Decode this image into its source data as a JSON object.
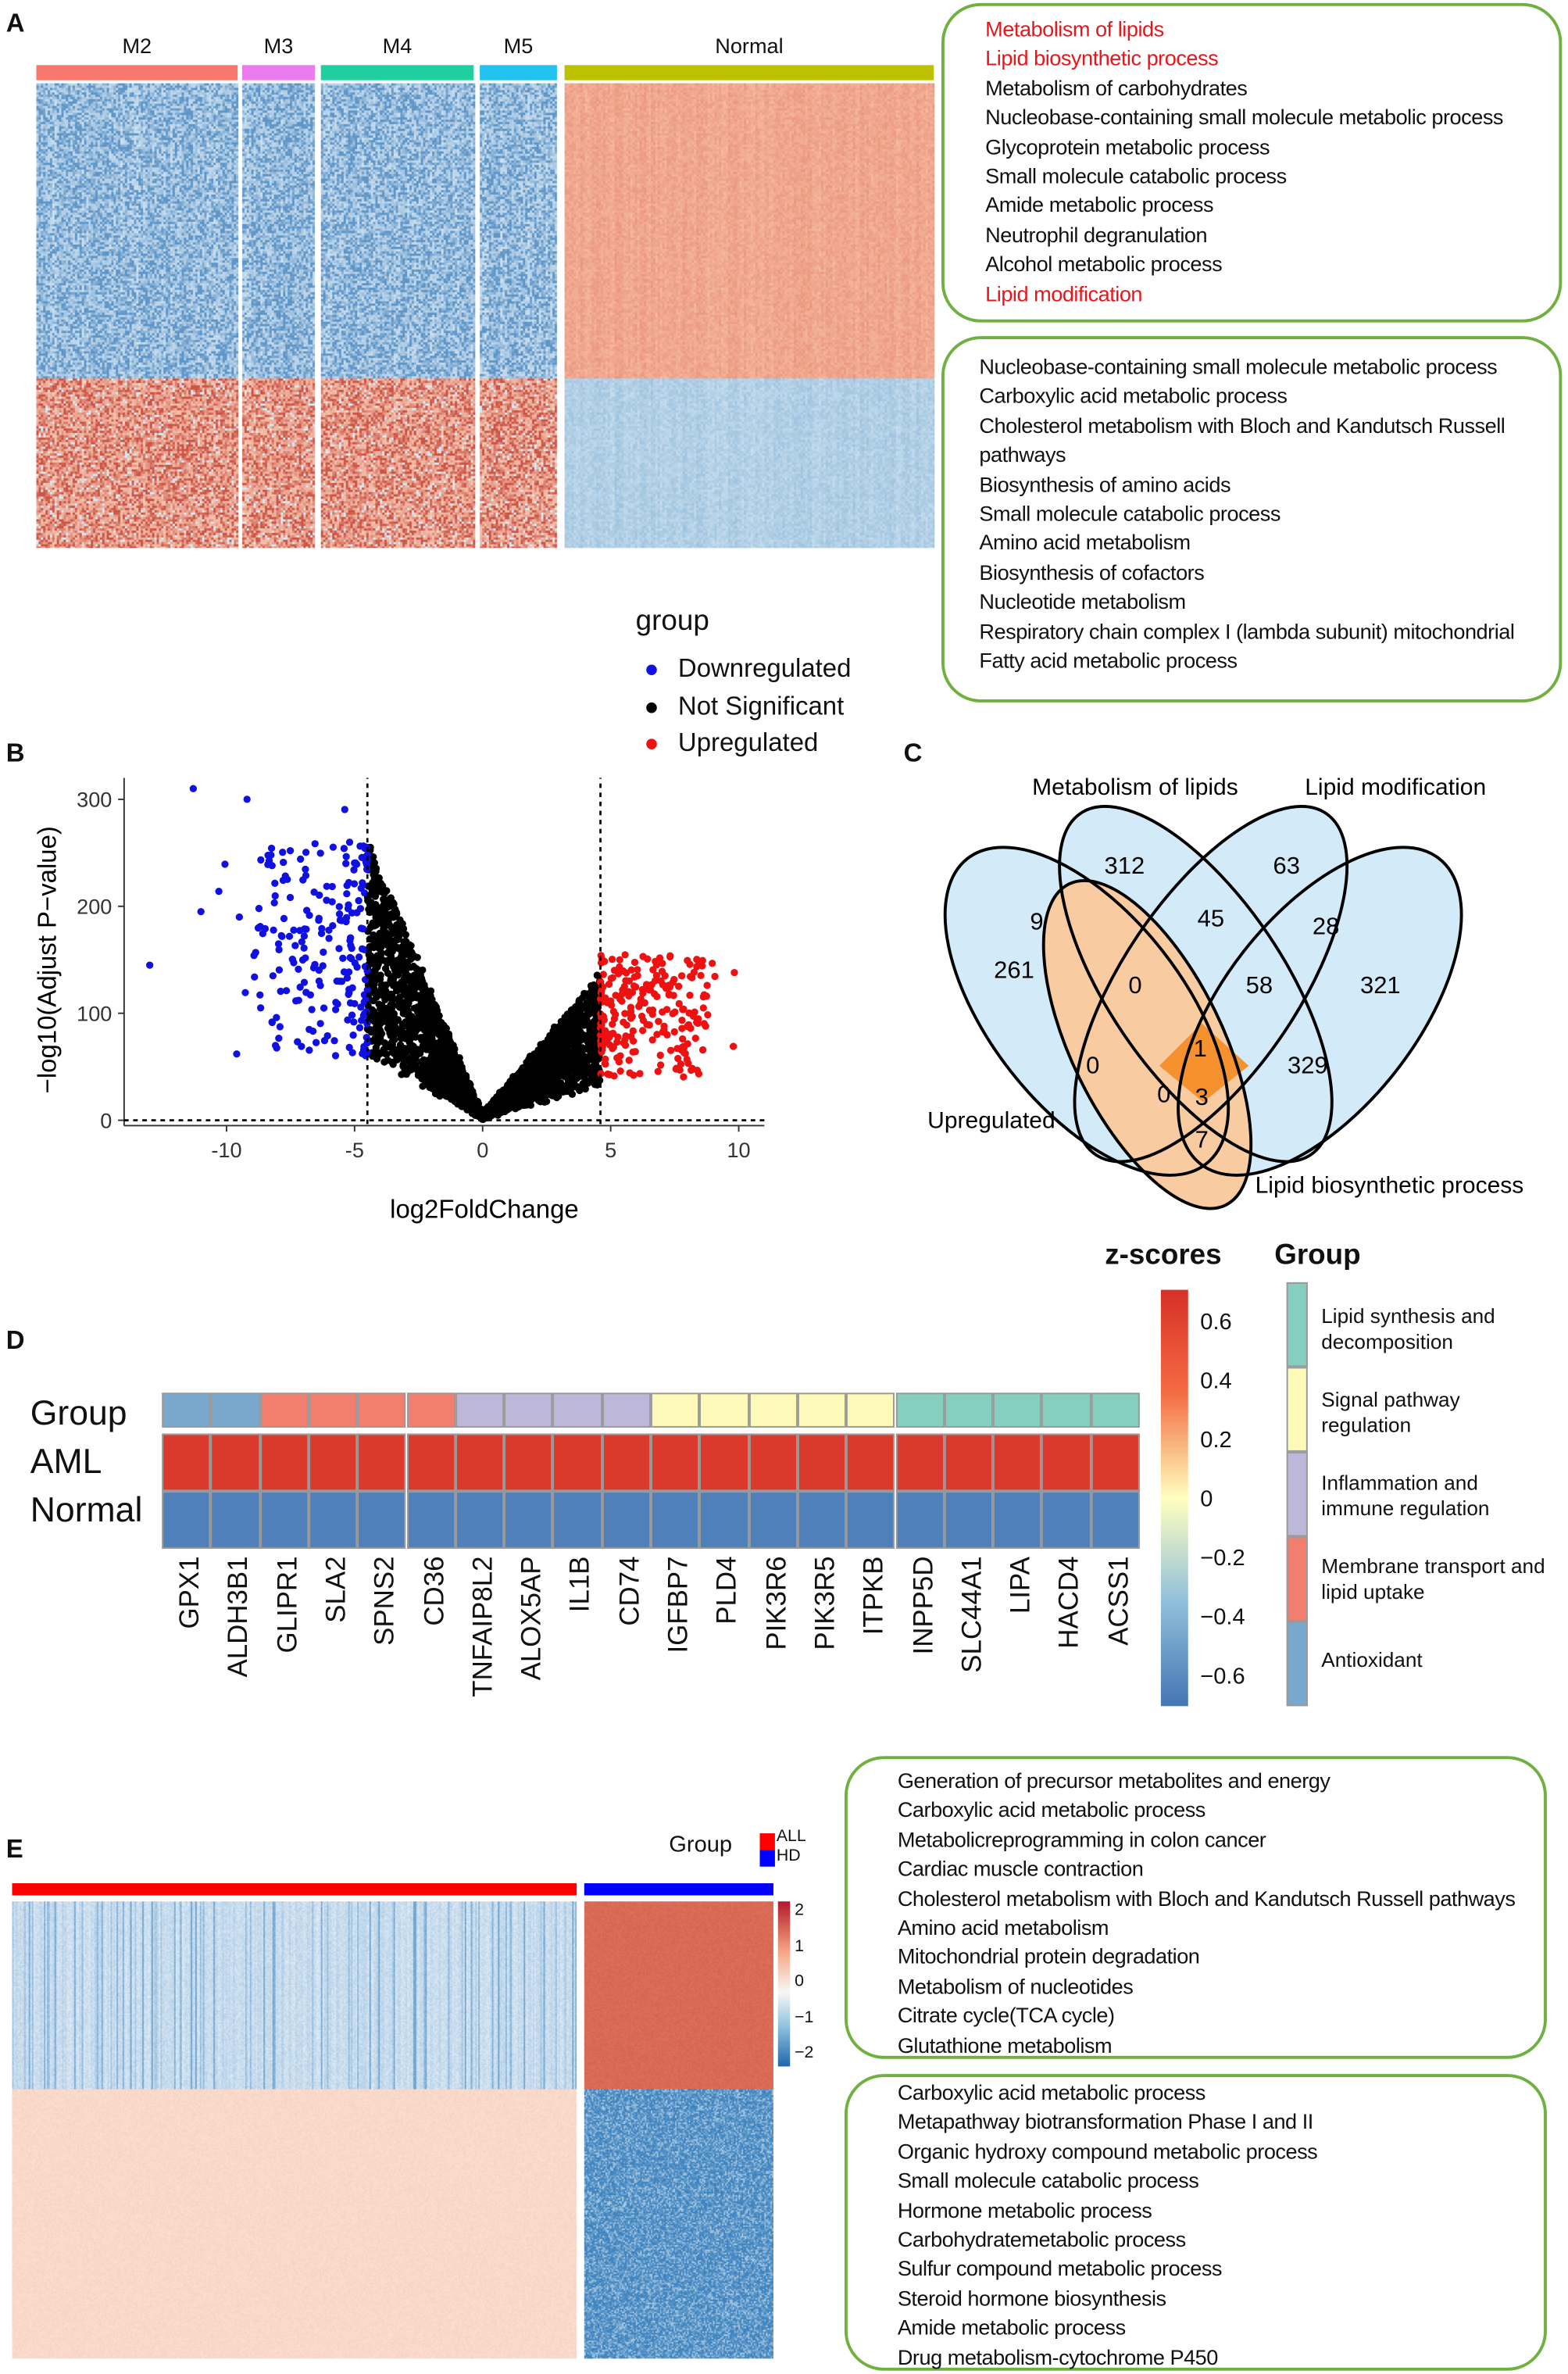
{
  "panel_labels": {
    "a": "A",
    "b": "B",
    "c": "C",
    "d": "D",
    "e": "E"
  },
  "heatmap_a": {
    "groups": [
      {
        "name": "M2",
        "color": "#f8776d"
      },
      {
        "name": "M3",
        "color": "#ea7cf0"
      },
      {
        "name": "M4",
        "color": "#1fcf9f"
      },
      {
        "name": "M5",
        "color": "#22c3ef"
      },
      {
        "name": "Normal",
        "color": "#bcc200"
      }
    ]
  },
  "go_box_a_top": [
    {
      "text": "Metabolism of lipids",
      "highlight": true
    },
    {
      "text": "Lipid biosynthetic process",
      "highlight": true
    },
    {
      "text": "Metabolism of carbohydrates",
      "highlight": false
    },
    {
      "text": "Nucleobase-containing small molecule metabolic process",
      "highlight": false
    },
    {
      "text": "Glycoprotein metabolic process",
      "highlight": false
    },
    {
      "text": "Small molecule catabolic process",
      "highlight": false
    },
    {
      "text": "Amide metabolic process",
      "highlight": false
    },
    {
      "text": "Neutrophil degranulation",
      "highlight": false
    },
    {
      "text": "Alcohol metabolic process",
      "highlight": false
    },
    {
      "text": "Lipid modification",
      "highlight": true
    }
  ],
  "go_box_a_bottom": [
    {
      "text": "Nucleobase-containing small molecule metabolic process"
    },
    {
      "text": "Carboxylic acid metabolic process"
    },
    {
      "text": "Cholesterol metabolism with Bloch and Kandutsch Russell"
    },
    {
      "text": "pathways"
    },
    {
      "text": "Biosynthesis of amino acids"
    },
    {
      "text": "Small molecule catabolic process"
    },
    {
      "text": "Amino acid metabolism"
    },
    {
      "text": "Biosynthesis of cofactors"
    },
    {
      "text": "Nucleotide metabolism"
    },
    {
      "text": "Respiratory chain complex I (lambda subunit) mitochondrial"
    },
    {
      "text": "Fatty acid metabolic process"
    }
  ],
  "highlight_color": "#e8161b",
  "chart_data": [
    {
      "type": "scatter",
      "panel": "B",
      "xlabel": "log2FoldChange",
      "ylabel": "−log10(Adjust P−value)",
      "xticks": [
        -10,
        -5,
        0,
        5,
        10
      ],
      "yticks": [
        0,
        100,
        200,
        300
      ],
      "xlim": [
        -14,
        11
      ],
      "ylim": [
        -5,
        320
      ],
      "grid": false,
      "thresholds": {
        "x": [
          -4.5,
          4.6
        ],
        "y": 0
      },
      "legend": {
        "title": "group",
        "placement": "top",
        "items": [
          {
            "name": "Downregulated",
            "color": "#1010e0"
          },
          {
            "name": "Not Significant",
            "color": "#000000"
          },
          {
            "name": "Upregulated",
            "color": "#ee1111"
          }
        ]
      }
    },
    {
      "type": "venn",
      "panel": "C",
      "sets": [
        "Upregulated",
        "Metabolism of lipids",
        "Lipid modification",
        "Lipid biosynthetic process"
      ],
      "regions": [
        {
          "sets": [
            "Upregulated"
          ],
          "count": 261
        },
        {
          "sets": [
            "Metabolism of lipids"
          ],
          "count": 312
        },
        {
          "sets": [
            "Lipid modification"
          ],
          "count": 63
        },
        {
          "sets": [
            "Lipid biosynthetic process"
          ],
          "count": 321
        },
        {
          "sets": [
            "Upregulated",
            "Metabolism of lipids"
          ],
          "count": 9
        },
        {
          "sets": [
            "Metabolism of lipids",
            "Lipid modification"
          ],
          "count": 45
        },
        {
          "sets": [
            "Lipid modification",
            "Lipid biosynthetic process"
          ],
          "count": 28
        },
        {
          "sets": [
            "Upregulated",
            "Metabolism of lipids",
            "Lipid modification"
          ],
          "count": 0
        },
        {
          "sets": [
            "Metabolism of lipids",
            "Lipid modification",
            "Lipid biosynthetic process"
          ],
          "count": 58
        },
        {
          "sets": [
            "Upregulated",
            "Lipid modification"
          ],
          "count": 0
        },
        {
          "sets": [
            "Upregulated",
            "Metabolism of lipids",
            "Lipid modification",
            "Lipid biosynthetic process"
          ],
          "count": 1
        },
        {
          "sets": [
            "Metabolism of lipids",
            "Lipid biosynthetic process"
          ],
          "count": 329
        },
        {
          "sets": [
            "Upregulated",
            "Lipid modification",
            "Lipid biosynthetic process"
          ],
          "count": 0
        },
        {
          "sets": [
            "Upregulated",
            "Metabolism of lipids",
            "Lipid biosynthetic process"
          ],
          "count": 3
        },
        {
          "sets": [
            "Upregulated",
            "Lipid biosynthetic process"
          ],
          "count": 7
        }
      ]
    },
    {
      "type": "heatmap",
      "panel": "D",
      "rows": [
        "Group",
        "AML",
        "Normal"
      ],
      "genes": [
        "GPX1",
        "ALDH3B1",
        "GLIPR1",
        "SLA2",
        "SPNS2",
        "CD36",
        "TNFAIP8L2",
        "ALOX5AP",
        "IL1B",
        "CD74",
        "IGFBP7",
        "PLD4",
        "PIK3R6",
        "PIK3R5",
        "ITPKB",
        "INPP5D",
        "SLC44A1",
        "LIPA",
        "HACD4",
        "ACSS1"
      ],
      "gene_groups": [
        0,
        0,
        1,
        1,
        1,
        1,
        2,
        2,
        2,
        2,
        3,
        3,
        3,
        3,
        3,
        4,
        4,
        4,
        4,
        4
      ],
      "colorbar": {
        "title": "z-scores",
        "ticks": [
          "0.6",
          "0.4",
          "0.2",
          "0",
          "−0.2",
          "−0.4",
          "−0.6"
        ],
        "range": [
          -0.7,
          0.7
        ]
      },
      "aml_z": 0.65,
      "normal_z": -0.65,
      "group_legend": {
        "title": "Group",
        "items": [
          {
            "label": "Lipid synthesis and decomposition",
            "color": "#86cfc0"
          },
          {
            "label": "Signal pathway regulation",
            "color": "#fdf9b8"
          },
          {
            "label": "Inflammation and immune regulation",
            "color": "#bdb7d9"
          },
          {
            "label": "Membrane transport and lipid uptake",
            "color": "#f27e6f"
          },
          {
            "label": "Antioxidant",
            "color": "#7aa8cc"
          }
        ]
      }
    },
    {
      "type": "heatmap",
      "panel": "E",
      "legend": {
        "title": "Group",
        "items": [
          {
            "name": "ALL",
            "color": "#ff0000"
          },
          {
            "name": "HD",
            "color": "#0000ff"
          }
        ]
      },
      "colorbar": {
        "ticks": [
          "2",
          "1",
          "0",
          "−1",
          "−2"
        ],
        "range": [
          -2.3,
          2.3
        ]
      }
    }
  ],
  "go_box_e_top": [
    {
      "text": "Generation of precursor metabolites and energy"
    },
    {
      "text": "Carboxylic acid metabolic process"
    },
    {
      "text": "Metabolicreprogramming in colon cancer"
    },
    {
      "text": "Cardiac muscle contraction"
    },
    {
      "text": "Cholesterol metabolism with Bloch and Kandutsch Russell pathways"
    },
    {
      "text": "Amino acid metabolism"
    },
    {
      "text": "Mitochondrial protein degradation"
    },
    {
      "text": "Metabolism of nucleotides"
    },
    {
      "text": "Citrate cycle(TCA cycle)"
    },
    {
      "text": "Glutathione metabolism"
    }
  ],
  "go_box_e_bottom": [
    {
      "text": "Carboxylic acid metabolic process"
    },
    {
      "text": "Metapathway biotransformation Phase I and II"
    },
    {
      "text": "Organic hydroxy compound metabolic process"
    },
    {
      "text": "Small molecule catabolic process"
    },
    {
      "text": "Hormone metabolic process"
    },
    {
      "text": "Carbohydratemetabolic process"
    },
    {
      "text": "Sulfur compound metabolic process"
    },
    {
      "text": "Steroid hormone biosynthesis"
    },
    {
      "text": "Amide metabolic process"
    },
    {
      "text": "Drug metabolism-cytochrome P450"
    }
  ]
}
